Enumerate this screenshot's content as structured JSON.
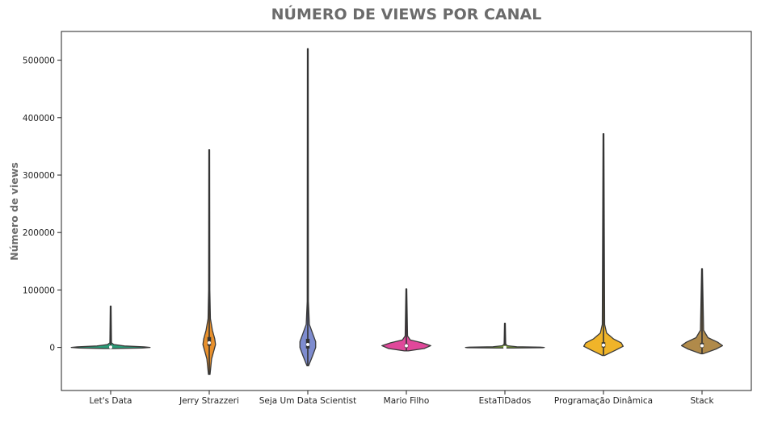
{
  "chart_data": {
    "type": "violin",
    "title": "NÚMERO DE VIEWS POR CANAL",
    "xlabel": "",
    "ylabel": "Número de views",
    "ylim": [
      -75000,
      550000
    ],
    "yticks": [
      0,
      100000,
      200000,
      300000,
      400000,
      500000
    ],
    "ytick_labels": [
      "0",
      "100000",
      "200000",
      "300000",
      "400000",
      "500000"
    ],
    "grid": false,
    "legend": "none",
    "categories": [
      "Let's Data",
      "Jerry Strazzeri",
      "Seja Um Data Scientist",
      "Mario Filho",
      "EstaTiDados",
      "Programação Dinâmica",
      "Stack"
    ],
    "series": [
      {
        "color": "#2a9d78",
        "min": -2000,
        "max": 72000,
        "median": 500,
        "q1": -500,
        "q3": 1500,
        "profile": [
          [
            -2000,
            0.1
          ],
          [
            -1000,
            0.8
          ],
          [
            0,
            1.0
          ],
          [
            1000,
            0.85
          ],
          [
            2500,
            0.35
          ],
          [
            5000,
            0.08
          ],
          [
            8000,
            0.02
          ],
          [
            72000,
            0.01
          ]
        ]
      },
      {
        "color": "#e8902c",
        "min": -47000,
        "max": 344000,
        "median": 8000,
        "q1": 3000,
        "q3": 18000,
        "profile": [
          [
            -47000,
            0.02
          ],
          [
            -20000,
            0.06
          ],
          [
            -5000,
            0.12
          ],
          [
            5000,
            0.16
          ],
          [
            15000,
            0.14
          ],
          [
            30000,
            0.08
          ],
          [
            50000,
            0.03
          ],
          [
            100000,
            0.015
          ],
          [
            344000,
            0.01
          ]
        ]
      },
      {
        "color": "#7e8ccf",
        "min": -32000,
        "max": 520000,
        "median": 5000,
        "q1": -2000,
        "q3": 15000,
        "profile": [
          [
            -32000,
            0.02
          ],
          [
            -15000,
            0.12
          ],
          [
            0,
            0.2
          ],
          [
            10000,
            0.2
          ],
          [
            25000,
            0.12
          ],
          [
            40000,
            0.04
          ],
          [
            80000,
            0.015
          ],
          [
            520000,
            0.01
          ]
        ]
      },
      {
        "color": "#e0489a",
        "min": -6000,
        "max": 102000,
        "median": 3000,
        "q1": 0,
        "q3": 6000,
        "profile": [
          [
            -6000,
            0.05
          ],
          [
            -2000,
            0.45
          ],
          [
            3000,
            0.62
          ],
          [
            8000,
            0.4
          ],
          [
            13000,
            0.1
          ],
          [
            20000,
            0.03
          ],
          [
            102000,
            0.01
          ]
        ]
      },
      {
        "color": "#7fa53a",
        "min": -1000,
        "max": 42000,
        "median": 0,
        "q1": -300,
        "q3": 300,
        "profile": [
          [
            -1000,
            0.2
          ],
          [
            -500,
            0.95
          ],
          [
            0,
            1.0
          ],
          [
            500,
            0.9
          ],
          [
            1200,
            0.3
          ],
          [
            3000,
            0.06
          ],
          [
            6000,
            0.02
          ],
          [
            42000,
            0.01
          ]
        ]
      },
      {
        "color": "#f0b429",
        "min": -14000,
        "max": 372000,
        "median": 4000,
        "q1": 0,
        "q3": 9000,
        "profile": [
          [
            -14000,
            0.03
          ],
          [
            -5000,
            0.3
          ],
          [
            2000,
            0.5
          ],
          [
            8000,
            0.45
          ],
          [
            15000,
            0.25
          ],
          [
            25000,
            0.08
          ],
          [
            40000,
            0.03
          ],
          [
            372000,
            0.01
          ]
        ]
      },
      {
        "color": "#b08a4a",
        "min": -11000,
        "max": 137000,
        "median": 3000,
        "q1": 0,
        "q3": 8000,
        "profile": [
          [
            -11000,
            0.03
          ],
          [
            -3000,
            0.35
          ],
          [
            3000,
            0.52
          ],
          [
            9000,
            0.4
          ],
          [
            17000,
            0.15
          ],
          [
            30000,
            0.04
          ],
          [
            137000,
            0.01
          ]
        ]
      }
    ]
  }
}
